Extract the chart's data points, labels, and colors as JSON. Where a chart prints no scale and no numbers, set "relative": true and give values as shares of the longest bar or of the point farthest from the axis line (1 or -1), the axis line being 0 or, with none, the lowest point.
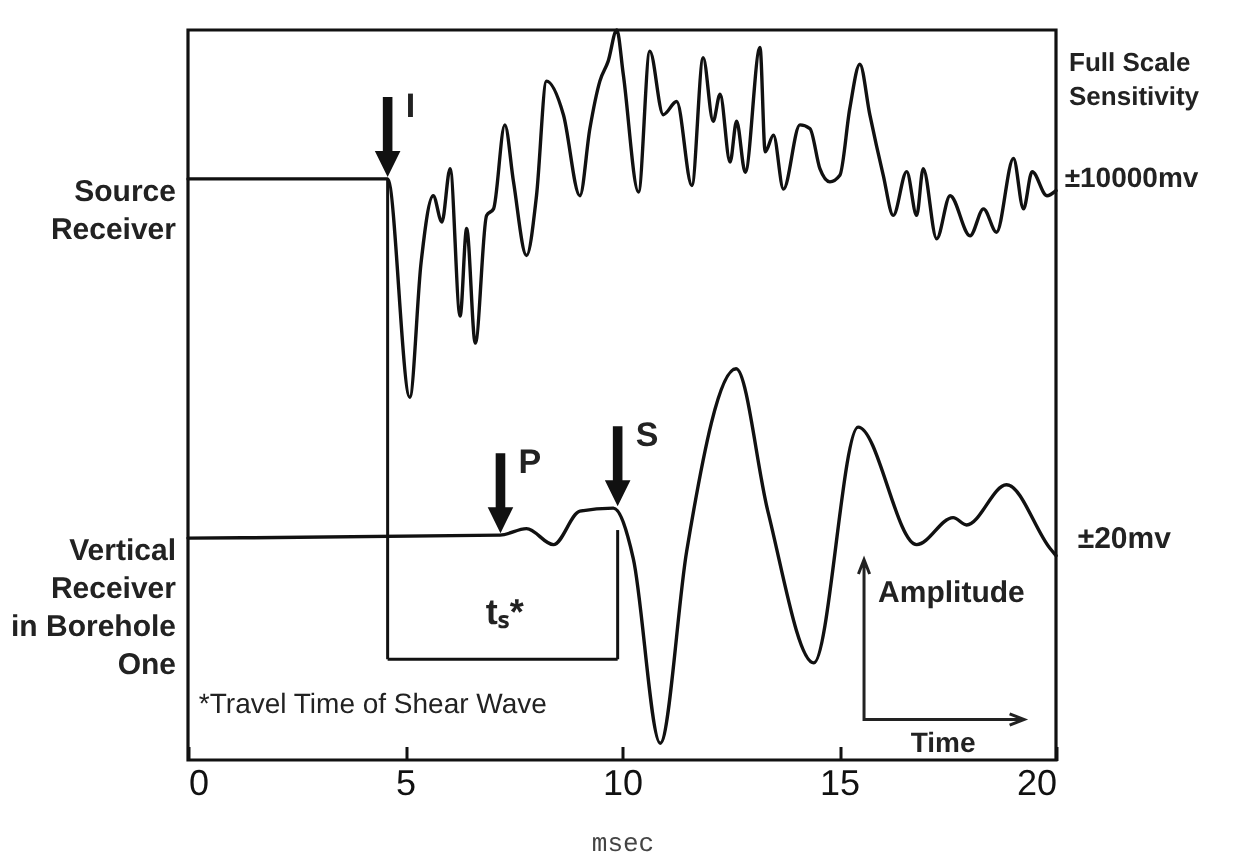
{
  "chart_data": {
    "type": "line",
    "relative": true,
    "xlabel": "msec",
    "xlim": [
      0,
      20
    ],
    "xticks": [
      0,
      5,
      10,
      15,
      20
    ],
    "grid": false,
    "series": [
      {
        "name": "Source\nReceiver",
        "color": "#111111",
        "x": [
          0,
          4.6,
          5.11,
          5.37,
          5.65,
          5.85,
          6.04,
          6.27,
          6.42,
          6.62,
          6.88,
          7.04,
          7.3,
          7.5,
          7.8,
          8.03,
          8.26,
          8.65,
          9.03,
          9.26,
          9.49,
          9.68,
          9.88,
          10.03,
          10.38,
          10.64,
          10.95,
          11.26,
          11.61,
          11.87,
          12.1,
          12.26,
          12.49,
          12.64,
          12.84,
          13.18,
          13.3,
          13.49,
          13.72,
          14.1,
          14.33,
          14.56,
          14.79,
          15.02,
          15.25,
          15.48,
          15.71,
          16.02,
          16.25,
          16.56,
          16.79,
          16.94,
          17.25,
          17.56,
          18.02,
          18.33,
          18.63,
          19.02,
          19.25,
          19.45,
          19.79,
          20
        ],
        "values": [
          0.796,
          0.796,
          0.497,
          0.681,
          0.773,
          0.737,
          0.81,
          0.608,
          0.728,
          0.571,
          0.746,
          0.755,
          0.87,
          0.792,
          0.691,
          0.773,
          0.93,
          0.884,
          0.773,
          0.865,
          0.93,
          0.957,
          1,
          0.939,
          0.778,
          0.971,
          0.884,
          0.902,
          0.787,
          0.962,
          0.875,
          0.912,
          0.819,
          0.875,
          0.805,
          0.976,
          0.833,
          0.856,
          0.782,
          0.87,
          0.865,
          0.81,
          0.792,
          0.801,
          0.893,
          0.953,
          0.884,
          0.801,
          0.746,
          0.806,
          0.746,
          0.81,
          0.714,
          0.773,
          0.718,
          0.755,
          0.723,
          0.824,
          0.755,
          0.806,
          0.773,
          0.78
        ]
      },
      {
        "name": "Vertical\nReceiver\nin Borehole\nOne",
        "color": "#111111",
        "x": [
          0,
          7.19,
          7.8,
          8.42,
          9.03,
          9.8,
          10.26,
          10.88,
          11.49,
          12.63,
          13.36,
          14.42,
          15.44,
          16.79,
          17.63,
          17.94,
          18.86,
          19.86,
          20
        ],
        "values": [
          0.304,
          0.308,
          0.317,
          0.295,
          0.341,
          0.345,
          0.276,
          0.023,
          0.286,
          0.536,
          0.341,
          0.133,
          0.456,
          0.295,
          0.332,
          0.322,
          0.377,
          0.29,
          0.28
        ]
      }
    ],
    "annotations": [
      {
        "text": "I",
        "x": 4.6,
        "y": 0.796
      },
      {
        "text": "P",
        "x": 7.2,
        "y": 0.308
      },
      {
        "text": "S",
        "x": 9.9,
        "y": 0.345
      },
      "tₛ*",
      "*Travel Time of Shear Wave",
      "Amplitude",
      "Time",
      "Full Scale\nSensitivity",
      "±10000mv",
      "±20mv"
    ]
  }
}
